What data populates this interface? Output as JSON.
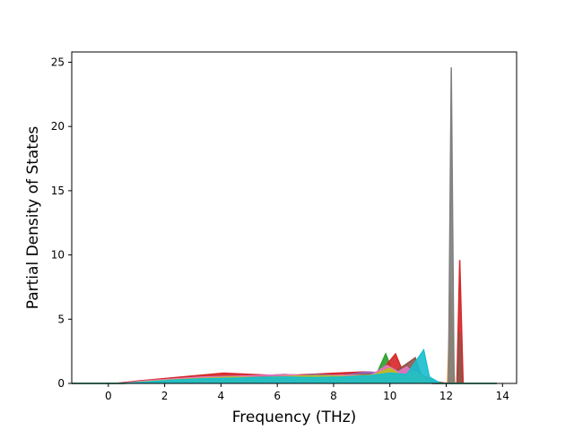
{
  "chart_data": {
    "type": "area",
    "title": "",
    "xlabel": "Frequency (THz)",
    "ylabel": "Partial Density of States",
    "xlim": [
      -1.3,
      14.5
    ],
    "ylim": [
      0,
      25.8
    ],
    "xticks": [
      0,
      2,
      4,
      6,
      8,
      10,
      12,
      14
    ],
    "yticks": [
      0,
      5,
      10,
      15,
      20,
      25
    ],
    "grid": false,
    "legend": "none",
    "colors": [
      "#1f77b4",
      "#ff7f0e",
      "#2ca02c",
      "#d62728",
      "#9467bd",
      "#8c564b",
      "#e377c2",
      "#7f7f7f",
      "#bcbd22",
      "#17becf"
    ],
    "series": [
      {
        "color": "#1f77b4",
        "points": [
          [
            -1.3,
            0
          ],
          [
            0.2,
            0
          ],
          [
            0.8,
            0.1
          ],
          [
            1.5,
            0.2
          ],
          [
            2.5,
            0.4
          ],
          [
            3.5,
            0.5
          ],
          [
            4.5,
            0.6
          ],
          [
            5.5,
            0.5
          ],
          [
            6.5,
            0.6
          ],
          [
            7.5,
            0.5
          ],
          [
            8.5,
            0.6
          ],
          [
            9.3,
            0.7
          ],
          [
            9.8,
            0.5
          ],
          [
            10.3,
            0.4
          ],
          [
            10.8,
            0.6
          ],
          [
            11.2,
            0.3
          ],
          [
            11.6,
            0
          ],
          [
            13.8,
            0
          ]
        ]
      },
      {
        "color": "#ff7f0e",
        "points": [
          [
            -1.3,
            0
          ],
          [
            0.3,
            0
          ],
          [
            1.0,
            0.15
          ],
          [
            2.0,
            0.3
          ],
          [
            3.0,
            0.45
          ],
          [
            4.0,
            0.55
          ],
          [
            5.0,
            0.5
          ],
          [
            6.0,
            0.6
          ],
          [
            7.0,
            0.5
          ],
          [
            8.0,
            0.6
          ],
          [
            9.0,
            0.7
          ],
          [
            9.7,
            0.8
          ],
          [
            10.2,
            1.0
          ],
          [
            10.6,
            1.5
          ],
          [
            10.8,
            0.8
          ],
          [
            11.3,
            0.2
          ],
          [
            11.9,
            0
          ],
          [
            12.05,
            0
          ],
          [
            12.15,
            7.3
          ],
          [
            12.3,
            0
          ],
          [
            13.8,
            0
          ]
        ]
      },
      {
        "color": "#2ca02c",
        "points": [
          [
            -1.3,
            0
          ],
          [
            0.4,
            0
          ],
          [
            1.2,
            0.2
          ],
          [
            2.2,
            0.35
          ],
          [
            3.2,
            0.5
          ],
          [
            4.2,
            0.6
          ],
          [
            5.2,
            0.55
          ],
          [
            6.2,
            0.7
          ],
          [
            7.2,
            0.6
          ],
          [
            8.2,
            0.7
          ],
          [
            9.0,
            0.8
          ],
          [
            9.5,
            0.6
          ],
          [
            9.85,
            2.3
          ],
          [
            10.1,
            0.9
          ],
          [
            10.5,
            0.6
          ],
          [
            11.0,
            0.3
          ],
          [
            11.5,
            0
          ],
          [
            13.8,
            0
          ]
        ]
      },
      {
        "color": "#d62728",
        "points": [
          [
            -1.3,
            0
          ],
          [
            0.3,
            0
          ],
          [
            1.1,
            0.2
          ],
          [
            2.1,
            0.4
          ],
          [
            3.1,
            0.6
          ],
          [
            4.1,
            0.8
          ],
          [
            5.1,
            0.7
          ],
          [
            6.1,
            0.6
          ],
          [
            7.1,
            0.7
          ],
          [
            8.1,
            0.8
          ],
          [
            9.1,
            0.9
          ],
          [
            9.6,
            0.7
          ],
          [
            10.2,
            2.3
          ],
          [
            10.5,
            0.7
          ],
          [
            10.9,
            0.4
          ],
          [
            11.4,
            0.1
          ],
          [
            12.2,
            0
          ],
          [
            12.38,
            0
          ],
          [
            12.48,
            9.6
          ],
          [
            12.6,
            0
          ],
          [
            13.8,
            0
          ]
        ]
      },
      {
        "color": "#9467bd",
        "points": [
          [
            -1.3,
            0
          ],
          [
            0.5,
            0
          ],
          [
            1.3,
            0.15
          ],
          [
            2.3,
            0.3
          ],
          [
            3.3,
            0.45
          ],
          [
            4.3,
            0.5
          ],
          [
            5.3,
            0.6
          ],
          [
            6.3,
            0.5
          ],
          [
            7.3,
            0.7
          ],
          [
            8.3,
            0.6
          ],
          [
            9.2,
            0.9
          ],
          [
            9.9,
            0.8
          ],
          [
            10.4,
            1.1
          ],
          [
            10.7,
            0.5
          ],
          [
            11.3,
            0.2
          ],
          [
            11.8,
            0
          ],
          [
            13.8,
            0
          ]
        ]
      },
      {
        "color": "#8c564b",
        "points": [
          [
            -1.3,
            0
          ],
          [
            0.4,
            0
          ],
          [
            1.2,
            0.1
          ],
          [
            2.2,
            0.3
          ],
          [
            3.2,
            0.4
          ],
          [
            4.2,
            0.5
          ],
          [
            5.2,
            0.5
          ],
          [
            6.2,
            0.55
          ],
          [
            7.2,
            0.6
          ],
          [
            8.2,
            0.6
          ],
          [
            9.2,
            0.7
          ],
          [
            10.0,
            0.6
          ],
          [
            10.9,
            2.0
          ],
          [
            11.1,
            0.7
          ],
          [
            11.5,
            0.2
          ],
          [
            12.0,
            0
          ],
          [
            12.4,
            0
          ],
          [
            12.48,
            4.0
          ],
          [
            12.56,
            0
          ],
          [
            13.8,
            0
          ]
        ]
      },
      {
        "color": "#e377c2",
        "points": [
          [
            -1.3,
            0
          ],
          [
            0.5,
            0
          ],
          [
            1.3,
            0.2
          ],
          [
            2.3,
            0.35
          ],
          [
            3.3,
            0.5
          ],
          [
            4.3,
            0.55
          ],
          [
            5.3,
            0.6
          ],
          [
            6.3,
            0.7
          ],
          [
            7.3,
            0.55
          ],
          [
            8.3,
            0.65
          ],
          [
            9.3,
            0.6
          ],
          [
            9.9,
            1.4
          ],
          [
            10.3,
            0.9
          ],
          [
            10.6,
            1.3
          ],
          [
            11.0,
            0.4
          ],
          [
            11.5,
            0
          ],
          [
            13.8,
            0
          ]
        ]
      },
      {
        "color": "#7f7f7f",
        "points": [
          [
            -1.3,
            0
          ],
          [
            0.5,
            0
          ],
          [
            1.4,
            0.1
          ],
          [
            2.4,
            0.25
          ],
          [
            3.4,
            0.4
          ],
          [
            4.4,
            0.45
          ],
          [
            5.4,
            0.5
          ],
          [
            6.4,
            0.55
          ],
          [
            7.4,
            0.5
          ],
          [
            8.4,
            0.55
          ],
          [
            9.4,
            0.6
          ],
          [
            10.2,
            0.5
          ],
          [
            10.8,
            0.4
          ],
          [
            11.4,
            0.2
          ],
          [
            11.9,
            0
          ],
          [
            12.08,
            0
          ],
          [
            12.18,
            24.6
          ],
          [
            12.28,
            0
          ],
          [
            13.8,
            0
          ]
        ]
      },
      {
        "color": "#bcbd22",
        "points": [
          [
            -1.3,
            0
          ],
          [
            0.6,
            0
          ],
          [
            1.4,
            0.15
          ],
          [
            2.4,
            0.3
          ],
          [
            3.4,
            0.4
          ],
          [
            4.4,
            0.5
          ],
          [
            5.4,
            0.45
          ],
          [
            6.4,
            0.55
          ],
          [
            7.4,
            0.6
          ],
          [
            8.4,
            0.55
          ],
          [
            9.4,
            0.65
          ],
          [
            10.0,
            1.2
          ],
          [
            10.4,
            0.6
          ],
          [
            10.9,
            0.9
          ],
          [
            11.3,
            0.3
          ],
          [
            11.7,
            0
          ],
          [
            13.8,
            0
          ]
        ]
      },
      {
        "color": "#17becf",
        "points": [
          [
            -1.3,
            0
          ],
          [
            0.5,
            0
          ],
          [
            1.3,
            0.1
          ],
          [
            2.3,
            0.25
          ],
          [
            3.3,
            0.35
          ],
          [
            4.3,
            0.4
          ],
          [
            5.3,
            0.45
          ],
          [
            6.3,
            0.5
          ],
          [
            7.3,
            0.45
          ],
          [
            8.3,
            0.5
          ],
          [
            9.3,
            0.6
          ],
          [
            10.0,
            0.8
          ],
          [
            10.6,
            0.7
          ],
          [
            11.2,
            2.6
          ],
          [
            11.4,
            0.5
          ],
          [
            11.8,
            0
          ],
          [
            13.8,
            0
          ]
        ]
      }
    ]
  }
}
